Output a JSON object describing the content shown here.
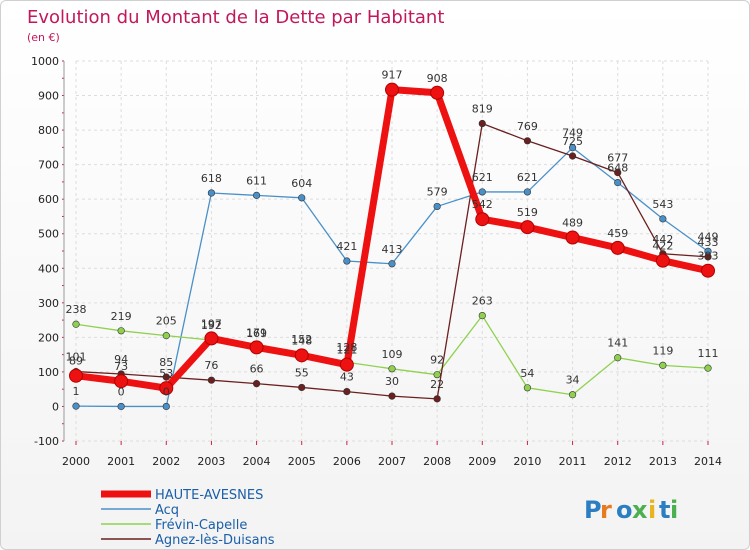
{
  "chart_data": {
    "type": "line",
    "title": "Evolution du Montant de la Dette par Habitant",
    "subtitle": "(en €)",
    "xlabel": "",
    "ylabel": "",
    "x": [
      "2000",
      "2001",
      "2002",
      "2003",
      "2004",
      "2005",
      "2006",
      "2007",
      "2008",
      "2009",
      "2010",
      "2011",
      "2012",
      "2013",
      "2014"
    ],
    "ylim": [
      -100,
      1000
    ],
    "yticks": [
      "-100",
      "0",
      "100",
      "200",
      "300",
      "400",
      "500",
      "600",
      "700",
      "800",
      "900",
      "1000"
    ],
    "grid": true,
    "legend_position": "bottom-left",
    "series": [
      {
        "name": "Acq",
        "color": "#4a90c8",
        "values": [
          1,
          0,
          0,
          618,
          611,
          604,
          421,
          413,
          579,
          621,
          621,
          749,
          648,
          543,
          449
        ],
        "labels": [
          "1",
          "0",
          "0",
          "618",
          "611",
          "604",
          "421",
          "413",
          "579",
          "621",
          "621",
          "749",
          "648",
          "543",
          "449"
        ]
      },
      {
        "name": "Frévin-Capelle",
        "color": "#8fd14f",
        "values": [
          238,
          219,
          205,
          192,
          169,
          152,
          128,
          109,
          92,
          263,
          54,
          34,
          141,
          119,
          111
        ],
        "labels": [
          "238",
          "219",
          "205",
          "192",
          "169",
          "152",
          "128",
          "109",
          "92",
          "263",
          "54",
          "34",
          "141",
          "119",
          "111"
        ]
      },
      {
        "name": "Agnez-lès-Duisans",
        "color": "#6b1f1f",
        "values": [
          101,
          94,
          85,
          76,
          66,
          55,
          43,
          30,
          22,
          819,
          769,
          725,
          677,
          442,
          433
        ],
        "labels": [
          "101",
          "94",
          "85",
          "76",
          "66",
          "55",
          "43",
          "30",
          "22",
          "819",
          "769",
          "725",
          "677",
          "442",
          "433"
        ]
      },
      {
        "name": "HAUTE-AVESNES",
        "color": "#ee1111",
        "values": [
          89,
          73,
          53,
          197,
          171,
          148,
          121,
          917,
          908,
          542,
          519,
          489,
          459,
          422,
          393
        ],
        "labels": [
          "89",
          "73",
          "53",
          "197",
          "171",
          "148",
          "121",
          "917",
          "908",
          "542",
          "519",
          "489",
          "459",
          "422",
          "393"
        ]
      }
    ],
    "legend": [
      "HAUTE-AVESNES",
      "Acq",
      "Frévin-Capelle",
      "Agnez-lès-Duisans"
    ]
  },
  "logo": {
    "text": "Proxiti"
  }
}
